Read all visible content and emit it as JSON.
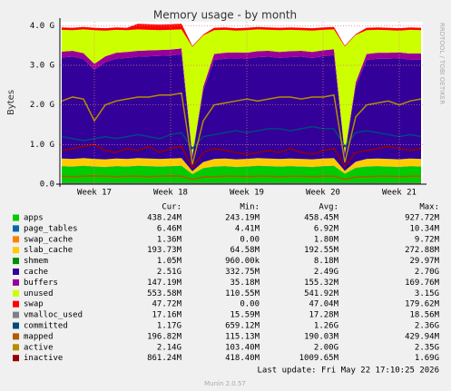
{
  "chart_data": {
    "type": "area",
    "title": "Memory usage - by month",
    "y_label": "Bytes",
    "side_label": "RRDTOOL / TOBI OETIKER",
    "last_update": "Last update: Fri May 22 17:10:25 2026",
    "footer": "Munin 2.0.57",
    "columns": [
      "Cur:",
      "Min:",
      "Avg:",
      "Max:"
    ],
    "categories": [
      null,
      null,
      null,
      "Week 17",
      null,
      null,
      null,
      null,
      null,
      null,
      "Week 18",
      null,
      null,
      null,
      null,
      null,
      null,
      "Week 19",
      null,
      null,
      null,
      null,
      null,
      null,
      "Week 20",
      null,
      null,
      null,
      null,
      null,
      null,
      "Week 21",
      null,
      null
    ],
    "ylim": [
      0,
      4.1
    ],
    "yticks": [
      {
        "value": 0,
        "label": "0.0"
      },
      {
        "value": 1,
        "label": "1.0 G"
      },
      {
        "value": 2,
        "label": "2.0 G"
      },
      {
        "value": 3,
        "label": "3.0 G"
      },
      {
        "value": 4,
        "label": "4.0 G"
      }
    ],
    "grid": true,
    "series": [
      {
        "name": "apps",
        "color": "#00cc00",
        "stacked": true,
        "summary": [
          "438.24M",
          "243.19M",
          "458.45M",
          "927.72M"
        ],
        "values": [
          0.45,
          0.44,
          0.46,
          0.44,
          0.43,
          0.45,
          0.44,
          0.46,
          0.45,
          0.44,
          0.45,
          0.46,
          0.25,
          0.4,
          0.44,
          0.45,
          0.43,
          0.44,
          0.46,
          0.45,
          0.44,
          0.45,
          0.44,
          0.43,
          0.45,
          0.46,
          0.26,
          0.41,
          0.44,
          0.45,
          0.44,
          0.43,
          0.45,
          0.44
        ]
      },
      {
        "name": "page_tables",
        "color": "#0066b3",
        "stacked": true,
        "summary": [
          "6.46M",
          "4.41M",
          "6.92M",
          "10.34M"
        ],
        "values": [
          0.006,
          0.006,
          0.006,
          0.006,
          0.006,
          0.006,
          0.006,
          0.006,
          0.006,
          0.006,
          0.006,
          0.006,
          0.005,
          0.006,
          0.006,
          0.006,
          0.006,
          0.006,
          0.006,
          0.006,
          0.006,
          0.006,
          0.006,
          0.006,
          0.006,
          0.006,
          0.005,
          0.006,
          0.006,
          0.006,
          0.006,
          0.006,
          0.006,
          0.006
        ]
      },
      {
        "name": "swap_cache",
        "color": "#ff8000",
        "stacked": true,
        "summary": [
          "1.36M",
          "0.00",
          "1.80M",
          "9.72M"
        ],
        "values": [
          0.001,
          0.001,
          0.001,
          0.001,
          0.001,
          0.001,
          0.001,
          0.001,
          0.001,
          0.001,
          0.001,
          0.001,
          0,
          0.001,
          0.001,
          0.001,
          0.001,
          0.001,
          0.001,
          0.001,
          0.001,
          0.001,
          0.001,
          0.001,
          0.001,
          0.001,
          0,
          0.001,
          0.001,
          0.001,
          0.001,
          0.001,
          0.001,
          0.001
        ]
      },
      {
        "name": "slab_cache",
        "color": "#ffcc00",
        "stacked": true,
        "summary": [
          "193.73M",
          "64.58M",
          "192.55M",
          "272.88M"
        ],
        "values": [
          0.19,
          0.19,
          0.19,
          0.19,
          0.19,
          0.19,
          0.19,
          0.19,
          0.19,
          0.19,
          0.19,
          0.19,
          0.07,
          0.15,
          0.19,
          0.19,
          0.19,
          0.19,
          0.19,
          0.19,
          0.19,
          0.19,
          0.19,
          0.19,
          0.19,
          0.19,
          0.07,
          0.15,
          0.19,
          0.19,
          0.19,
          0.19,
          0.19,
          0.19
        ]
      },
      {
        "name": "shmem",
        "color": "#008f00",
        "stacked": true,
        "summary": [
          "1.05M",
          "960.00k",
          "8.18M",
          "29.97M"
        ],
        "values": [
          0.001,
          0.001,
          0.001,
          0.001,
          0.001,
          0.001,
          0.001,
          0.001,
          0.001,
          0.001,
          0.001,
          0.001,
          0.001,
          0.001,
          0.001,
          0.001,
          0.001,
          0.001,
          0.001,
          0.001,
          0.001,
          0.001,
          0.001,
          0.001,
          0.001,
          0.001,
          0.001,
          0.001,
          0.001,
          0.001,
          0.001,
          0.001,
          0.001,
          0.001
        ]
      },
      {
        "name": "cache",
        "color": "#330099",
        "stacked": true,
        "summary": [
          "2.51G",
          "332.75M",
          "2.49G",
          "2.70G"
        ],
        "values": [
          2.55,
          2.58,
          2.5,
          2.25,
          2.45,
          2.52,
          2.55,
          2.56,
          2.58,
          2.6,
          2.6,
          2.62,
          0.35,
          1.8,
          2.5,
          2.52,
          2.55,
          2.53,
          2.55,
          2.57,
          2.55,
          2.56,
          2.58,
          2.56,
          2.58,
          2.6,
          0.4,
          1.9,
          2.5,
          2.52,
          2.53,
          2.55,
          2.5,
          2.51
        ]
      },
      {
        "name": "buffers",
        "color": "#990099",
        "stacked": true,
        "summary": [
          "147.19M",
          "35.18M",
          "155.32M",
          "169.76M"
        ],
        "values": [
          0.15,
          0.15,
          0.15,
          0.15,
          0.15,
          0.15,
          0.15,
          0.15,
          0.15,
          0.15,
          0.15,
          0.15,
          0.04,
          0.1,
          0.15,
          0.15,
          0.15,
          0.15,
          0.15,
          0.15,
          0.15,
          0.15,
          0.15,
          0.15,
          0.15,
          0.15,
          0.04,
          0.1,
          0.15,
          0.15,
          0.15,
          0.15,
          0.15,
          0.15
        ]
      },
      {
        "name": "unused",
        "color": "#ccff00",
        "stacked": true,
        "summary": [
          "553.58M",
          "110.55M",
          "541.92M",
          "3.15G"
        ],
        "values": [
          0.55,
          0.52,
          0.6,
          0.85,
          0.65,
          0.58,
          0.55,
          0.54,
          0.52,
          0.5,
          0.5,
          0.48,
          2.75,
          1.3,
          0.6,
          0.58,
          0.55,
          0.57,
          0.55,
          0.53,
          0.55,
          0.54,
          0.52,
          0.54,
          0.52,
          0.5,
          2.7,
          1.2,
          0.6,
          0.58,
          0.57,
          0.55,
          0.6,
          0.59
        ]
      },
      {
        "name": "swap",
        "color": "#ff0000",
        "stacked": true,
        "summary": [
          "47.72M",
          "0.00",
          "47.04M",
          "179.62M"
        ],
        "values": [
          0.06,
          0.06,
          0.06,
          0.06,
          0.06,
          0.06,
          0.06,
          0.14,
          0.14,
          0.14,
          0.14,
          0.14,
          0.02,
          0.02,
          0.06,
          0.06,
          0.06,
          0.06,
          0.06,
          0.06,
          0.06,
          0.06,
          0.06,
          0.06,
          0.06,
          0.06,
          0.02,
          0.02,
          0.06,
          0.06,
          0.06,
          0.06,
          0.06,
          0.06
        ]
      },
      {
        "name": "vmalloc_used",
        "color": "#808080",
        "stacked": false,
        "summary": [
          "17.16M",
          "15.59M",
          "17.28M",
          "18.56M"
        ],
        "values": [
          0.017,
          0.017,
          0.017,
          0.017,
          0.017,
          0.017,
          0.017,
          0.017,
          0.017,
          0.017,
          0.017,
          0.017,
          0.016,
          0.017,
          0.017,
          0.017,
          0.017,
          0.017,
          0.017,
          0.017,
          0.017,
          0.017,
          0.017,
          0.017,
          0.017,
          0.017,
          0.016,
          0.017,
          0.017,
          0.017,
          0.017,
          0.017,
          0.017,
          0.017
        ]
      },
      {
        "name": "committed",
        "color": "#00487d",
        "stacked": false,
        "summary": [
          "1.17G",
          "659.12M",
          "1.26G",
          "2.36G"
        ],
        "values": [
          1.2,
          1.15,
          1.1,
          1.15,
          1.2,
          1.15,
          1.2,
          1.25,
          1.2,
          1.15,
          1.25,
          1.3,
          0.9,
          1.2,
          1.25,
          1.3,
          1.35,
          1.3,
          1.35,
          1.4,
          1.4,
          1.35,
          1.4,
          1.45,
          1.4,
          1.4,
          0.95,
          1.3,
          1.35,
          1.3,
          1.25,
          1.2,
          1.25,
          1.2
        ]
      },
      {
        "name": "mapped",
        "color": "#b35a00",
        "stacked": false,
        "summary": [
          "196.82M",
          "115.13M",
          "190.03M",
          "429.94M"
        ],
        "values": [
          0.2,
          0.19,
          0.2,
          0.21,
          0.2,
          0.19,
          0.2,
          0.2,
          0.19,
          0.2,
          0.21,
          0.2,
          0.12,
          0.18,
          0.19,
          0.2,
          0.2,
          0.19,
          0.2,
          0.2,
          0.19,
          0.2,
          0.2,
          0.19,
          0.2,
          0.2,
          0.12,
          0.18,
          0.19,
          0.2,
          0.2,
          0.19,
          0.2,
          0.2
        ]
      },
      {
        "name": "active",
        "color": "#b38f00",
        "stacked": false,
        "summary": [
          "2.14G",
          "103.40M",
          "2.00G",
          "2.35G"
        ],
        "values": [
          2.1,
          2.2,
          2.15,
          1.6,
          2.0,
          2.1,
          2.15,
          2.2,
          2.2,
          2.25,
          2.25,
          2.3,
          0.5,
          1.6,
          2.0,
          2.05,
          2.1,
          2.15,
          2.1,
          2.15,
          2.2,
          2.2,
          2.15,
          2.2,
          2.2,
          2.25,
          0.55,
          1.7,
          2.0,
          2.05,
          2.1,
          2.0,
          2.1,
          2.15
        ]
      },
      {
        "name": "inactive",
        "color": "#990000",
        "stacked": false,
        "summary": [
          "861.24M",
          "418.40M",
          "1009.65M",
          "1.69G"
        ],
        "values": [
          0.85,
          0.9,
          0.95,
          1.0,
          0.85,
          0.8,
          0.9,
          0.85,
          0.95,
          0.8,
          0.9,
          0.95,
          0.42,
          0.8,
          0.9,
          0.85,
          0.8,
          0.75,
          0.8,
          0.85,
          0.8,
          0.9,
          0.8,
          0.75,
          0.85,
          0.9,
          0.45,
          0.8,
          0.85,
          0.9,
          0.95,
          0.9,
          0.85,
          0.9
        ]
      }
    ]
  }
}
